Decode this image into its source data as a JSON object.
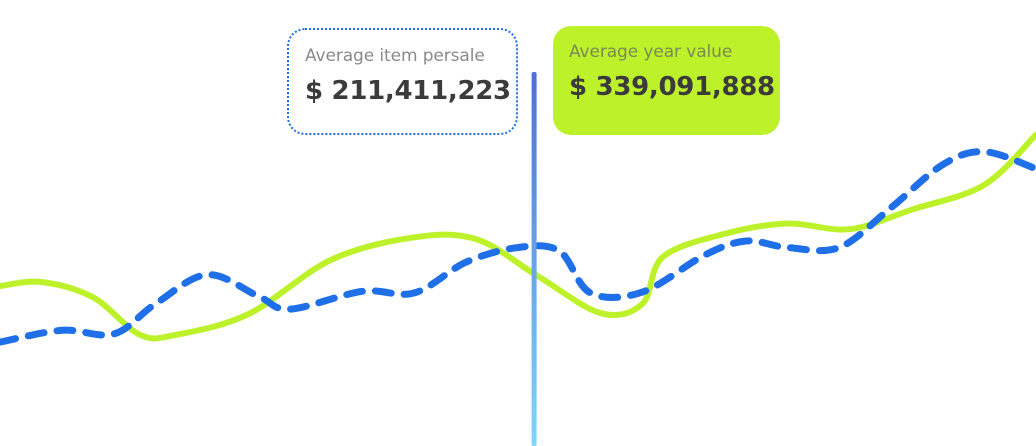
{
  "cards": {
    "item_persale": {
      "label": "Average item persale",
      "value": "$ 211,411,223"
    },
    "year_value": {
      "label": "Average year value",
      "value": "$ 339,091,888"
    }
  },
  "colors": {
    "green_series": "#bdf22b",
    "blue_series": "#1f6fe8",
    "cursor_top": "#4f6fd8",
    "cursor_bottom": "#7fd6f7"
  },
  "chart_data": {
    "type": "line",
    "title": "",
    "xlabel": "",
    "ylabel": "",
    "xlim": [
      0,
      1
    ],
    "ylim": [
      0,
      1
    ],
    "grid": false,
    "cursor_x": 0.516,
    "series": [
      {
        "color": "#bdf22b",
        "style": "solid",
        "points": [
          [
            0.0,
            0.394
          ],
          [
            0.04,
            0.404
          ],
          [
            0.09,
            0.366
          ],
          [
            0.135,
            0.274
          ],
          [
            0.17,
            0.274
          ],
          [
            0.24,
            0.325
          ],
          [
            0.32,
            0.459
          ],
          [
            0.4,
            0.514
          ],
          [
            0.46,
            0.509
          ],
          [
            0.52,
            0.417
          ],
          [
            0.58,
            0.327
          ],
          [
            0.62,
            0.35
          ],
          [
            0.64,
            0.466
          ],
          [
            0.7,
            0.523
          ],
          [
            0.76,
            0.548
          ],
          [
            0.82,
            0.534
          ],
          [
            0.88,
            0.582
          ],
          [
            0.95,
            0.643
          ],
          [
            1.0,
            0.767
          ]
        ]
      },
      {
        "color": "#1f6fe8",
        "style": "dashed",
        "points": [
          [
            0.0,
            0.256
          ],
          [
            0.06,
            0.285
          ],
          [
            0.11,
            0.276
          ],
          [
            0.15,
            0.35
          ],
          [
            0.2,
            0.422
          ],
          [
            0.25,
            0.368
          ],
          [
            0.28,
            0.337
          ],
          [
            0.35,
            0.381
          ],
          [
            0.4,
            0.377
          ],
          [
            0.45,
            0.453
          ],
          [
            0.5,
            0.489
          ],
          [
            0.54,
            0.48
          ],
          [
            0.57,
            0.377
          ],
          [
            0.62,
            0.379
          ],
          [
            0.68,
            0.47
          ],
          [
            0.72,
            0.505
          ],
          [
            0.76,
            0.489
          ],
          [
            0.81,
            0.489
          ],
          [
            0.86,
            0.587
          ],
          [
            0.91,
            0.693
          ],
          [
            0.95,
            0.725
          ],
          [
            1.0,
            0.683
          ]
        ]
      }
    ]
  }
}
